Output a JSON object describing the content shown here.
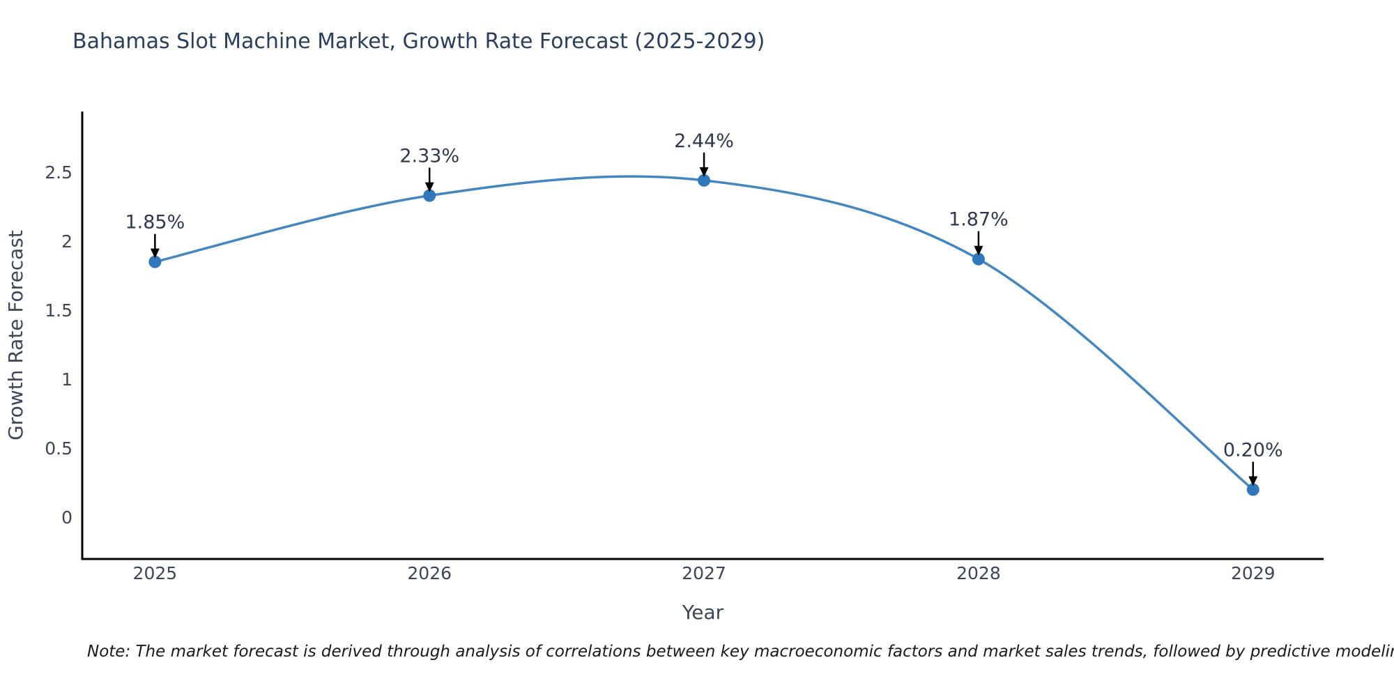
{
  "title": {
    "text": "Bahamas Slot Machine Market, Growth Rate Forecast (2025-2029)",
    "color": "#2a3f5f"
  },
  "chart_data": {
    "type": "line",
    "x": [
      2025,
      2026,
      2027,
      2028,
      2029
    ],
    "series": [
      {
        "name": "Growth Rate Forecast",
        "values": [
          1.85,
          2.33,
          2.44,
          1.87,
          0.2
        ]
      }
    ],
    "point_labels": [
      "1.85%",
      "2.33%",
      "2.44%",
      "1.87%",
      "0.20%"
    ],
    "xlabel": "Year",
    "ylabel": "Growth Rate Forecast",
    "xtick_labels": [
      "2025",
      "2026",
      "2027",
      "2028",
      "2029"
    ],
    "ytick_values": [
      0,
      0.5,
      1,
      1.5,
      2,
      2.5
    ],
    "ytick_labels": [
      "0",
      "0.5",
      "1",
      "1.5",
      "2",
      "2.5"
    ],
    "xlim": [
      2024.735,
      2029.257
    ],
    "ylim": [
      -0.303,
      2.939
    ],
    "grid": false,
    "legend": "none",
    "line_shape": "spline",
    "line_color": "#4486c0",
    "marker_color": "#3077bb",
    "axis_line_color": "#000000",
    "annotation_arrow_color": "#000000",
    "annotation_text_color": "#2f3850",
    "tick_label_color": "#3e4557"
  },
  "note": {
    "text": "Note: The market forecast is derived through analysis of correlations between key macroeconomic factors and market sales trends, followed by predictive modeling to project future sales"
  }
}
